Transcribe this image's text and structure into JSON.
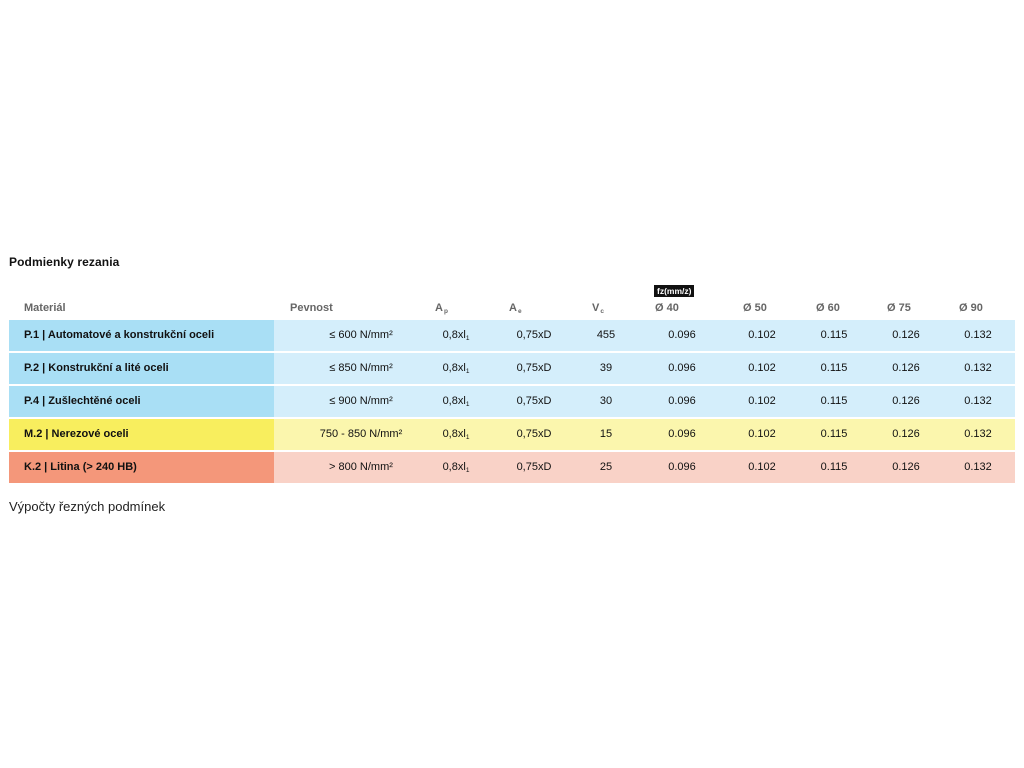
{
  "title": "Podmienky rezania",
  "fz_badge": "fz(mm/z)",
  "columns": {
    "material": "Materiál",
    "pevnost": "Pevnost",
    "ap": "A",
    "ap_sub": "p",
    "ae": "A",
    "ae_sub": "e",
    "vc": "V",
    "vc_sub": "c",
    "d40": "Ø 40",
    "d50": "Ø 50",
    "d60": "Ø 60",
    "d75": "Ø 75",
    "d90": "Ø 90"
  },
  "rows": [
    {
      "material": "P.1 | Automatové a konstrukční oceli",
      "pevnost": "≤ 600 N/mm²",
      "ap": "0,8xl",
      "ap_sub": "1",
      "ae": "0,75xD",
      "vc": "455",
      "d40": "0.096",
      "d50": "0.102",
      "d60": "0.115",
      "d75": "0.126",
      "d90": "0.132",
      "mat_color": "#a9dff5",
      "row_color": "#d4eefb"
    },
    {
      "material": "P.2 | Konstrukční a lité oceli",
      "pevnost": "≤ 850 N/mm²",
      "ap": "0,8xl",
      "ap_sub": "1",
      "ae": "0,75xD",
      "vc": "39",
      "d40": "0.096",
      "d50": "0.102",
      "d60": "0.115",
      "d75": "0.126",
      "d90": "0.132",
      "mat_color": "#a9dff5",
      "row_color": "#d4eefb"
    },
    {
      "material": "P.4 | Zušlechtěné oceli",
      "pevnost": "≤ 900 N/mm²",
      "ap": "0,8xl",
      "ap_sub": "1",
      "ae": "0,75xD",
      "vc": "30",
      "d40": "0.096",
      "d50": "0.102",
      "d60": "0.115",
      "d75": "0.126",
      "d90": "0.132",
      "mat_color": "#a9dff5",
      "row_color": "#d4eefb"
    },
    {
      "material": "M.2 | Nerezové oceli",
      "pevnost": "750 - 850 N/mm²",
      "ap": "0,8xl",
      "ap_sub": "1",
      "ae": "0,75xD",
      "vc": "15",
      "d40": "0.096",
      "d50": "0.102",
      "d60": "0.115",
      "d75": "0.126",
      "d90": "0.132",
      "mat_color": "#f8ee5e",
      "row_color": "#fbf6ad"
    },
    {
      "material": "K.2 | Litina (> 240 HB)",
      "pevnost": "> 800 N/mm²",
      "ap": "0,8xl",
      "ap_sub": "1",
      "ae": "0,75xD",
      "vc": "25",
      "d40": "0.096",
      "d50": "0.102",
      "d60": "0.115",
      "d75": "0.126",
      "d90": "0.132",
      "mat_color": "#f4977a",
      "row_color": "#f9d2c7"
    }
  ],
  "caption": "Výpočty řezných podmínek"
}
